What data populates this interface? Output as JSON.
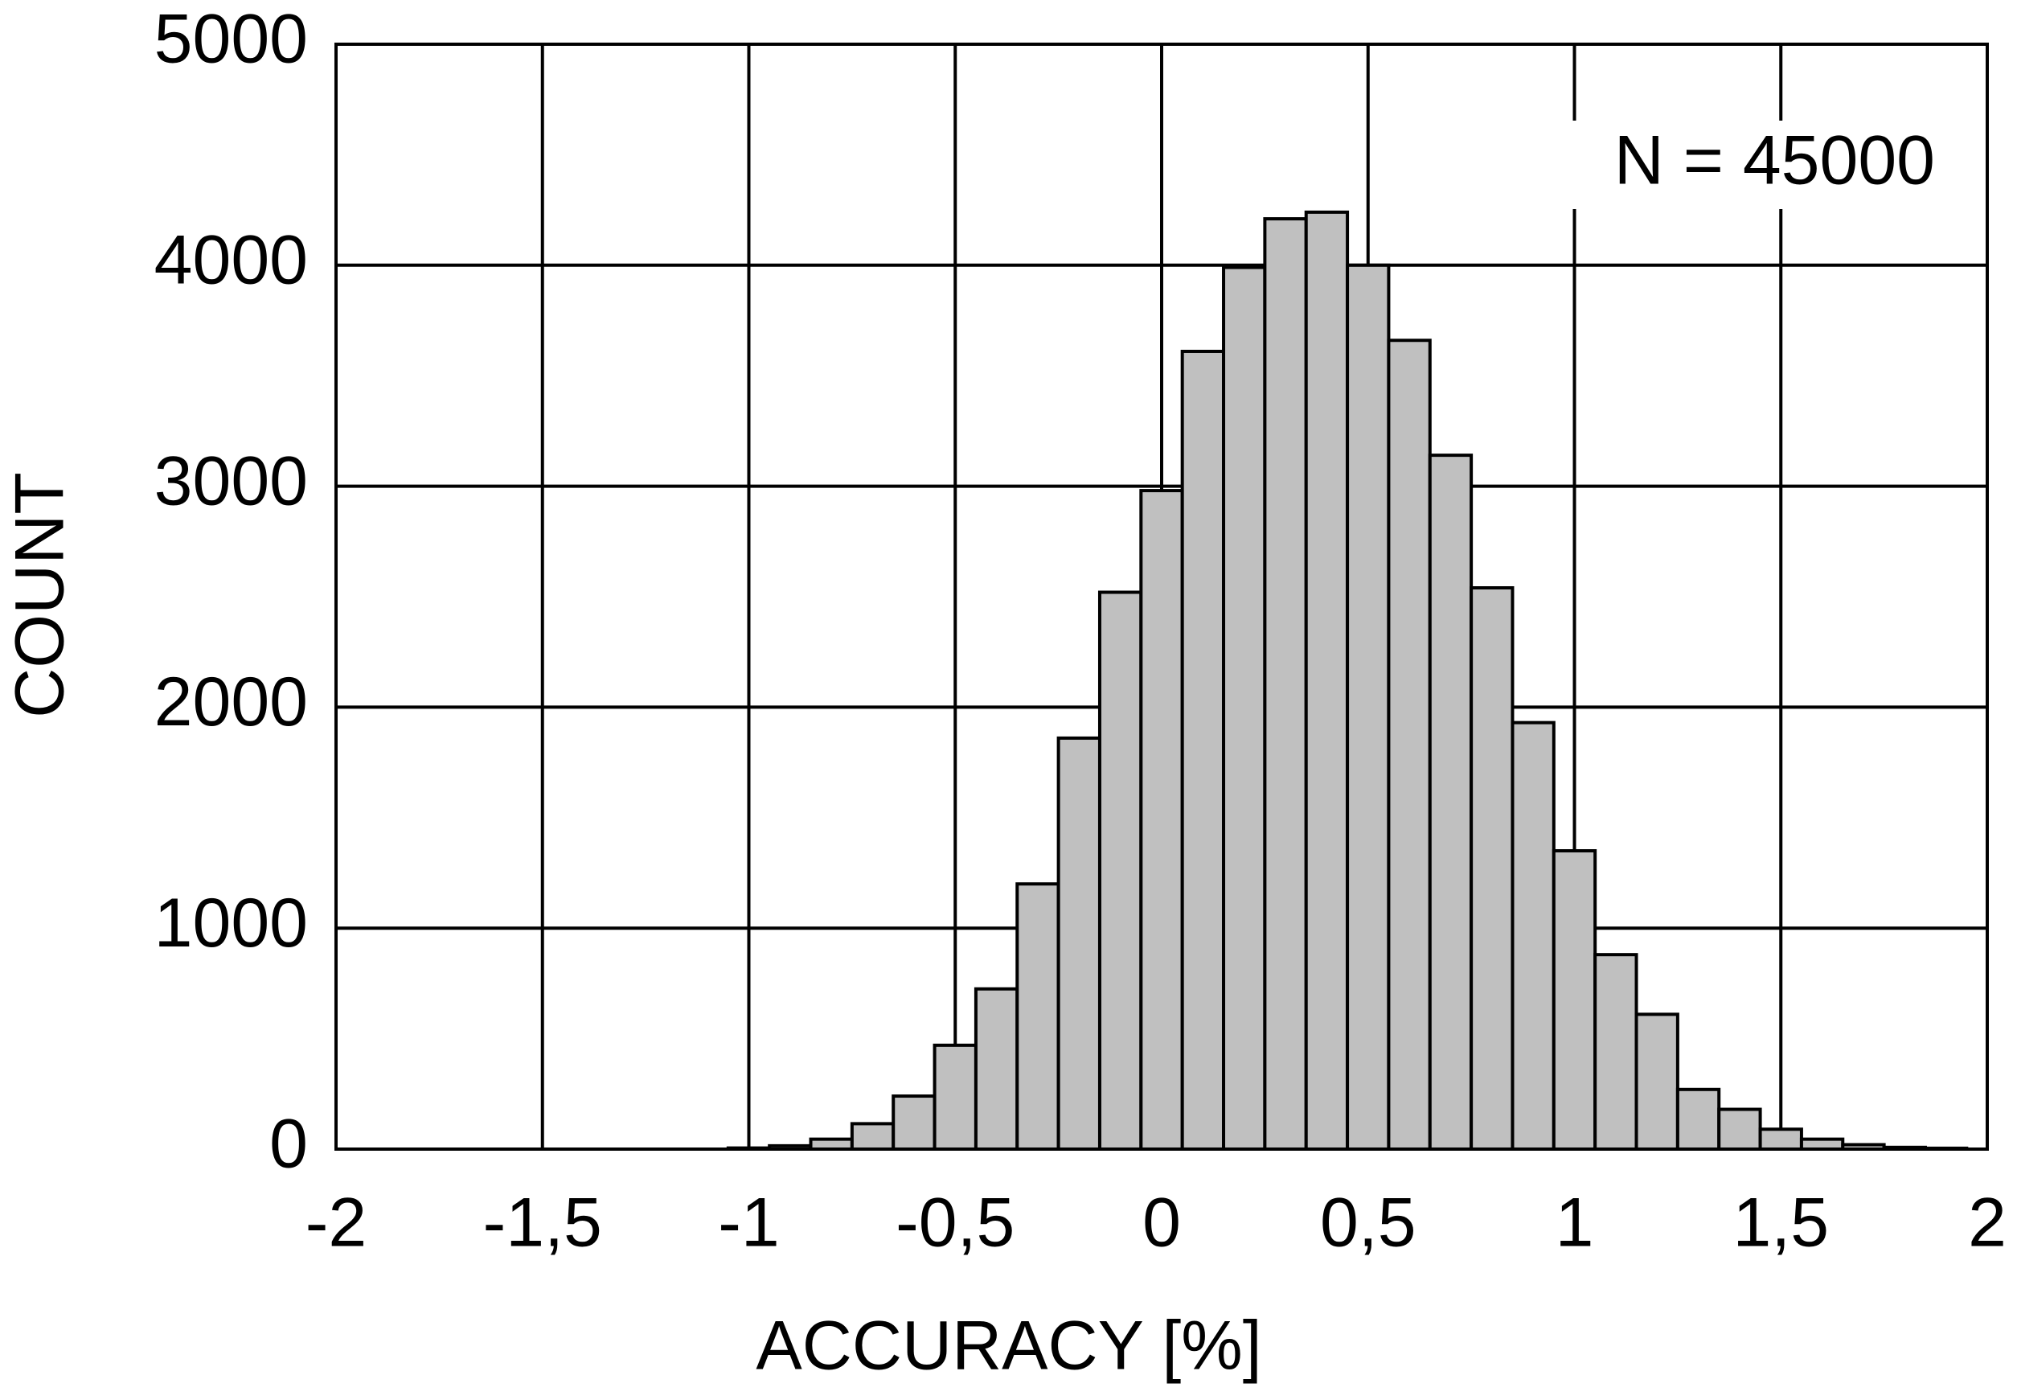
{
  "chart_data": {
    "type": "histogram",
    "xlabel": "ACCURACY [%]",
    "ylabel": "COUNT",
    "annotation": "N = 45000",
    "bins": [
      -1.05,
      -0.95,
      -0.85,
      -0.75,
      -0.65,
      -0.55,
      -0.45,
      -0.35,
      -0.25,
      -0.15,
      -0.05,
      0.05,
      0.15,
      0.25,
      0.35,
      0.45,
      0.55,
      0.65,
      0.75,
      0.85,
      0.95,
      1.05,
      1.15,
      1.25,
      1.35,
      1.45,
      1.55,
      1.65,
      1.75,
      1.85,
      1.95
    ],
    "values": [
      5,
      15,
      45,
      115,
      240,
      470,
      725,
      1200,
      1860,
      2520,
      2980,
      3610,
      3990,
      4210,
      4240,
      4000,
      3660,
      3140,
      2540,
      1930,
      1350,
      880,
      610,
      270,
      180,
      90,
      45,
      20,
      8,
      4
    ],
    "color": "#c0c0c0",
    "xlim": [
      -2,
      2
    ],
    "xticks": [
      -2,
      {
        "value": -1.5,
        "label": "-1,5"
      },
      -1,
      {
        "value": -0.5,
        "label": "-0,5"
      },
      0,
      {
        "value": 0.5,
        "label": "0,5"
      },
      1,
      {
        "value": 1.5,
        "label": "1,5"
      },
      2
    ],
    "ylim": [
      0,
      5000
    ],
    "yticks": [
      0,
      1000,
      2000,
      3000,
      4000,
      5000
    ],
    "grid": true
  }
}
